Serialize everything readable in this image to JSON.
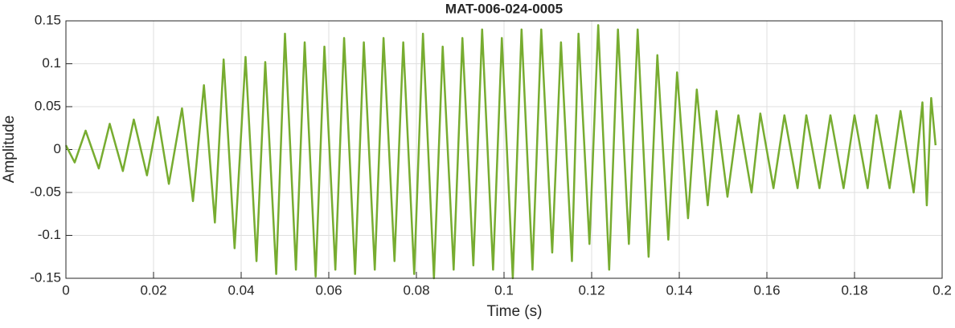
{
  "chart_data": {
    "type": "line",
    "title": "MAT-006-024-0005",
    "xlabel": "Time (s)",
    "ylabel": "Amplitude",
    "xlim": [
      0,
      0.2
    ],
    "ylim": [
      -0.15,
      0.15
    ],
    "xticks": [
      0,
      0.02,
      0.04,
      0.06,
      0.08,
      0.1,
      0.12,
      0.14,
      0.16,
      0.18,
      0.2
    ],
    "yticks": [
      -0.15,
      -0.1,
      -0.05,
      0,
      0.05,
      0.1,
      0.15
    ],
    "grid": true,
    "x": [
      0,
      0.002,
      0.0045,
      0.0075,
      0.01,
      0.013,
      0.0155,
      0.0185,
      0.021,
      0.0235,
      0.0265,
      0.029,
      0.0315,
      0.034,
      0.036,
      0.0385,
      0.041,
      0.0435,
      0.0455,
      0.048,
      0.05,
      0.0525,
      0.0545,
      0.057,
      0.059,
      0.0615,
      0.0635,
      0.066,
      0.068,
      0.0705,
      0.0725,
      0.075,
      0.077,
      0.0795,
      0.0815,
      0.084,
      0.086,
      0.0885,
      0.0905,
      0.093,
      0.095,
      0.0975,
      0.0995,
      0.102,
      0.104,
      0.1065,
      0.1085,
      0.111,
      0.113,
      0.1155,
      0.117,
      0.1195,
      0.1215,
      0.124,
      0.126,
      0.1285,
      0.1305,
      0.133,
      0.135,
      0.1375,
      0.1395,
      0.142,
      0.144,
      0.1465,
      0.1485,
      0.151,
      0.1535,
      0.1565,
      0.1585,
      0.1615,
      0.164,
      0.167,
      0.169,
      0.172,
      0.1745,
      0.1775,
      0.18,
      0.183,
      0.185,
      0.188,
      0.1905,
      0.1935,
      0.1955,
      0.1965,
      0.1975,
      0.1985
    ],
    "series": [
      {
        "color": "#77ac30",
        "values": [
          0.005,
          -0.015,
          0.022,
          -0.022,
          0.03,
          -0.025,
          0.035,
          -0.03,
          0.038,
          -0.04,
          0.048,
          -0.06,
          0.075,
          -0.085,
          0.105,
          -0.115,
          0.108,
          -0.13,
          0.102,
          -0.145,
          0.135,
          -0.14,
          0.125,
          -0.148,
          0.12,
          -0.14,
          0.13,
          -0.145,
          0.125,
          -0.14,
          0.13,
          -0.13,
          0.125,
          -0.145,
          0.135,
          -0.15,
          0.12,
          -0.14,
          0.13,
          -0.135,
          0.14,
          -0.14,
          0.13,
          -0.15,
          0.14,
          -0.14,
          0.14,
          -0.12,
          0.125,
          -0.13,
          0.135,
          -0.11,
          0.145,
          -0.14,
          0.14,
          -0.11,
          0.14,
          -0.125,
          0.11,
          -0.105,
          0.09,
          -0.08,
          0.07,
          -0.065,
          0.045,
          -0.055,
          0.04,
          -0.05,
          0.042,
          -0.045,
          0.04,
          -0.045,
          0.04,
          -0.045,
          0.04,
          -0.045,
          0.04,
          -0.045,
          0.04,
          -0.045,
          0.045,
          -0.05,
          0.055,
          -0.065,
          0.06,
          0.005
        ]
      }
    ]
  }
}
